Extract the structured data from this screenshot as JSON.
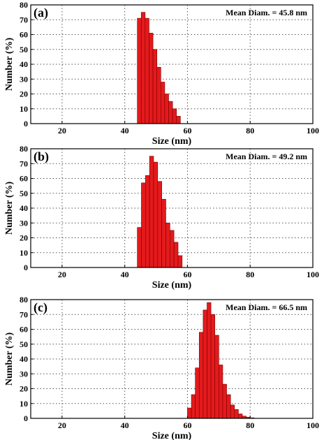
{
  "figure": {
    "xlabel": "Size (nm)",
    "ylabel": "Number (%)"
  },
  "chart_data": [
    {
      "type": "bar",
      "panel_label": "(a)",
      "annotation": "Mean Diam. = 45.8 nm",
      "title": "",
      "xlabel": "Size (nm)",
      "ylabel": "Number (%)",
      "xlim": [
        10,
        100
      ],
      "ylim": [
        0,
        80
      ],
      "xticks": [
        20,
        40,
        60,
        80,
        100
      ],
      "yticks": [
        0,
        10,
        20,
        30,
        40,
        50,
        60,
        70,
        80
      ],
      "grid": "dotted",
      "bin_width": 1.25,
      "bars": [
        {
          "x": 44.0,
          "y": 71
        },
        {
          "x": 45.25,
          "y": 75
        },
        {
          "x": 46.5,
          "y": 71
        },
        {
          "x": 47.75,
          "y": 61
        },
        {
          "x": 49.0,
          "y": 50
        },
        {
          "x": 50.25,
          "y": 38
        },
        {
          "x": 51.5,
          "y": 28
        },
        {
          "x": 52.75,
          "y": 20
        },
        {
          "x": 54.0,
          "y": 15
        },
        {
          "x": 55.25,
          "y": 10
        },
        {
          "x": 56.5,
          "y": 5
        }
      ]
    },
    {
      "type": "bar",
      "panel_label": "(b)",
      "annotation": "Mean Diam. = 49.2 nm",
      "title": "",
      "xlabel": "Size (nm)",
      "ylabel": "Number (%)",
      "xlim": [
        10,
        100
      ],
      "ylim": [
        0,
        80
      ],
      "xticks": [
        20,
        40,
        60,
        80,
        100
      ],
      "yticks": [
        0,
        10,
        20,
        30,
        40,
        50,
        60,
        70,
        80
      ],
      "grid": "dotted",
      "bin_width": 1.3,
      "bars": [
        {
          "x": 44.0,
          "y": 27
        },
        {
          "x": 45.3,
          "y": 57
        },
        {
          "x": 46.6,
          "y": 62
        },
        {
          "x": 47.9,
          "y": 75
        },
        {
          "x": 49.2,
          "y": 71
        },
        {
          "x": 50.5,
          "y": 58
        },
        {
          "x": 51.8,
          "y": 46
        },
        {
          "x": 53.1,
          "y": 30
        },
        {
          "x": 54.4,
          "y": 25
        },
        {
          "x": 55.7,
          "y": 17
        },
        {
          "x": 57.0,
          "y": 8
        }
      ]
    },
    {
      "type": "bar",
      "panel_label": "(c)",
      "annotation": "Mean Diam. = 66.5 nm",
      "title": "",
      "xlabel": "Size (nm)",
      "ylabel": "Number (%)",
      "xlim": [
        10,
        100
      ],
      "ylim": [
        0,
        80
      ],
      "xticks": [
        20,
        40,
        60,
        80,
        100
      ],
      "yticks": [
        0,
        10,
        20,
        30,
        40,
        50,
        60,
        70,
        80
      ],
      "grid": "dotted",
      "bin_width": 1.25,
      "bars": [
        {
          "x": 60.0,
          "y": 7
        },
        {
          "x": 61.25,
          "y": 16
        },
        {
          "x": 62.5,
          "y": 34
        },
        {
          "x": 63.75,
          "y": 58
        },
        {
          "x": 65.0,
          "y": 73
        },
        {
          "x": 66.25,
          "y": 78
        },
        {
          "x": 67.5,
          "y": 70
        },
        {
          "x": 68.75,
          "y": 56
        },
        {
          "x": 70.0,
          "y": 36
        },
        {
          "x": 71.25,
          "y": 23
        },
        {
          "x": 72.5,
          "y": 16
        },
        {
          "x": 73.75,
          "y": 9
        },
        {
          "x": 75.0,
          "y": 6
        },
        {
          "x": 76.25,
          "y": 3
        },
        {
          "x": 77.5,
          "y": 1.5
        },
        {
          "x": 78.75,
          "y": 0.8
        },
        {
          "x": 80.0,
          "y": 0.4
        }
      ]
    }
  ],
  "colors": {
    "bar_fill": "#e31a1c",
    "bar_stroke": "#7a0000",
    "grid": "#555555",
    "axis": "#000000"
  }
}
